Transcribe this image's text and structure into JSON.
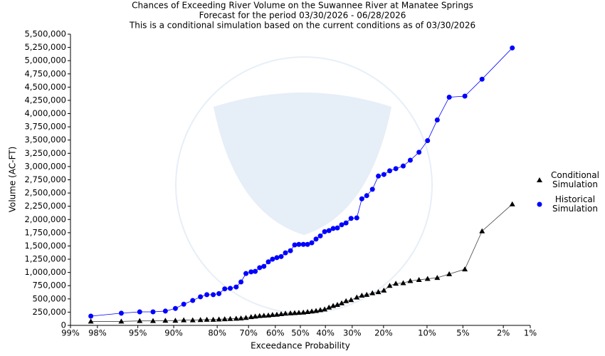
{
  "chart_data": {
    "type": "probability-line",
    "title": "Chances of Exceeding River Volume on the Suwannee River at Manatee Springs",
    "subtitle": "Forecast for the period 03/30/2026 - 06/28/2026",
    "subtitle2": "This is a conditional simulation based on the current conditions as of 03/30/2026",
    "x_label": "Exceedance Probability",
    "y_label": "Volume (AC-FT)",
    "xscale": "probit",
    "xlim": [
      99,
      1
    ],
    "xticks": [
      {
        "value": 99,
        "label": "99%"
      },
      {
        "value": 98,
        "label": "98%"
      },
      {
        "value": 95,
        "label": "95%"
      },
      {
        "value": 90,
        "label": "90%"
      },
      {
        "value": 80,
        "label": "80%"
      },
      {
        "value": 70,
        "label": "70%"
      },
      {
        "value": 60,
        "label": "60%"
      },
      {
        "value": 50,
        "label": "50%"
      },
      {
        "value": 40,
        "label": "40%"
      },
      {
        "value": 30,
        "label": "30%"
      },
      {
        "value": 20,
        "label": "20%"
      },
      {
        "value": 10,
        "label": "10%"
      },
      {
        "value": 5,
        "label": "5%"
      },
      {
        "value": 2,
        "label": "2%"
      },
      {
        "value": 1,
        "label": "1%"
      }
    ],
    "ylim": [
      0,
      5500000
    ],
    "yticks": [
      0,
      {
        "value": 250000,
        "label": "250,000"
      },
      {
        "value": 500000,
        "label": "500,000"
      },
      {
        "value": 750000,
        "label": "750,000"
      },
      {
        "value": 1000000,
        "label": "1,000,000"
      },
      {
        "value": 1250000,
        "label": "1,250,000"
      },
      {
        "value": 1500000,
        "label": "1,500,000"
      },
      {
        "value": 1750000,
        "label": "1,750,000"
      },
      {
        "value": 2000000,
        "label": "2,000,000"
      },
      {
        "value": 2250000,
        "label": "2,250,000"
      },
      {
        "value": 2500000,
        "label": "2,500,000"
      },
      {
        "value": 2750000,
        "label": "2,750,000"
      },
      {
        "value": 3000000,
        "label": "3,000,000"
      },
      {
        "value": 3250000,
        "label": "3,250,000"
      },
      {
        "value": 3500000,
        "label": "3,500,000"
      },
      {
        "value": 3750000,
        "label": "3,750,000"
      },
      {
        "value": 4000000,
        "label": "4,000,000"
      },
      {
        "value": 4250000,
        "label": "4,250,000"
      },
      {
        "value": 4500000,
        "label": "4,500,000"
      },
      {
        "value": 4750000,
        "label": "4,750,000"
      },
      {
        "value": 5000000,
        "label": "5,000,000"
      },
      {
        "value": 5250000,
        "label": "5,250,000"
      },
      {
        "value": 5500000,
        "label": "5,500,000"
      }
    ],
    "legend": "right",
    "x": [
      98.3,
      96.5,
      94.8,
      93.2,
      91.4,
      89.7,
      88.1,
      86.2,
      84.4,
      82.8,
      81.1,
      79.5,
      77.8,
      76.1,
      74.2,
      72.6,
      70.9,
      69.1,
      67.6,
      66.0,
      64.4,
      62.7,
      61.1,
      59.4,
      57.7,
      56.0,
      54.0,
      52.3,
      50.6,
      48.8,
      47.1,
      45.4,
      43.7,
      42.0,
      40.3,
      38.6,
      37.0,
      35.4,
      33.8,
      32.2,
      30.4,
      28.4,
      26.7,
      25.1,
      23.3,
      21.5,
      19.9,
      18.3,
      16.7,
      14.9,
      13.3,
      11.5,
      9.9,
      8.3,
      6.6,
      4.8,
      3.3,
      1.6
    ],
    "series": [
      {
        "name": "Conditional Simulation",
        "color": "#000000",
        "line_color": "#444444",
        "marker": "triangle",
        "values": [
          75000,
          75000,
          85000,
          85000,
          90000,
          90000,
          100000,
          100000,
          105000,
          110000,
          110000,
          115000,
          120000,
          125000,
          130000,
          135000,
          145000,
          160000,
          170000,
          180000,
          185000,
          190000,
          200000,
          205000,
          215000,
          225000,
          230000,
          235000,
          240000,
          245000,
          255000,
          265000,
          275000,
          290000,
          305000,
          340000,
          370000,
          390000,
          420000,
          460000,
          480000,
          530000,
          565000,
          580000,
          610000,
          630000,
          660000,
          750000,
          790000,
          800000,
          840000,
          860000,
          880000,
          900000,
          970000,
          1060000,
          1780000,
          2290000
        ]
      },
      {
        "name": "Historical Simulation",
        "color": "#0000ff",
        "line_color": "#0000ff",
        "marker": "circle",
        "values": [
          175000,
          230000,
          255000,
          255000,
          270000,
          320000,
          400000,
          470000,
          540000,
          580000,
          580000,
          600000,
          690000,
          700000,
          725000,
          820000,
          980000,
          1010000,
          1020000,
          1090000,
          1115000,
          1200000,
          1250000,
          1280000,
          1300000,
          1370000,
          1410000,
          1520000,
          1530000,
          1530000,
          1530000,
          1560000,
          1630000,
          1690000,
          1770000,
          1790000,
          1830000,
          1840000,
          1900000,
          1935000,
          2020000,
          2030000,
          2390000,
          2450000,
          2570000,
          2820000,
          2850000,
          2920000,
          2960000,
          3010000,
          3120000,
          3270000,
          3490000,
          3880000,
          4310000,
          4330000,
          4650000,
          5240000
        ]
      }
    ]
  }
}
